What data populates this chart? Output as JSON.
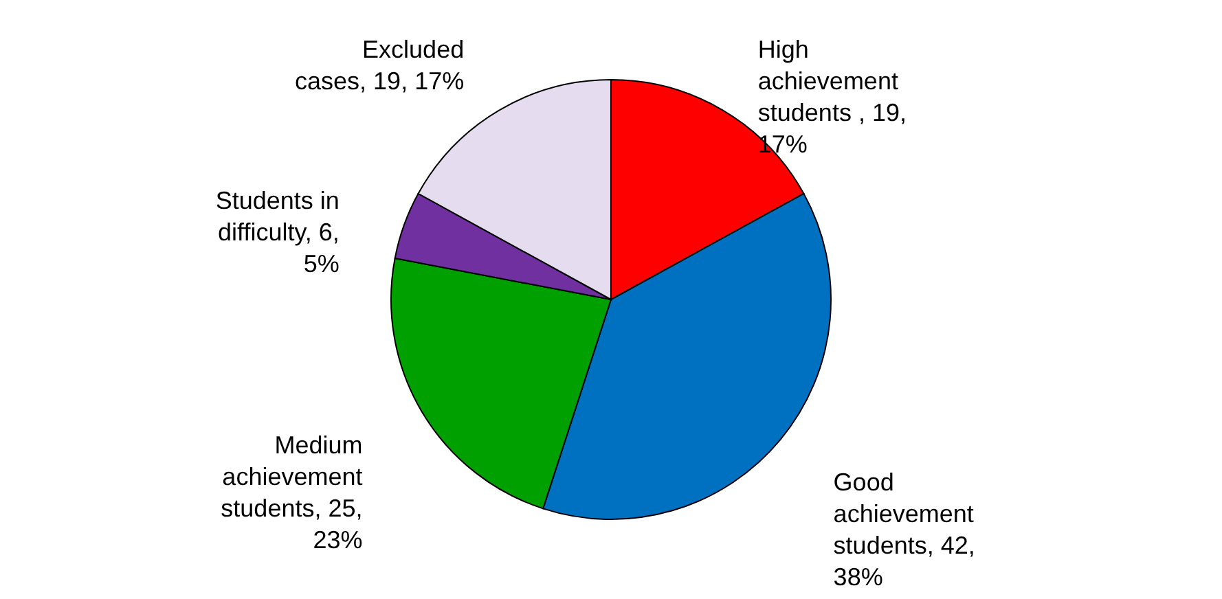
{
  "chart_data": {
    "type": "pie",
    "categories": [
      "High achievement students ",
      "Good achievement students",
      "Medium achievement students",
      "Students in difficulty",
      "Excluded cases"
    ],
    "values": [
      17,
      38,
      23,
      5,
      17
    ],
    "value_labels": [
      "19, 17%",
      "42, 38%",
      "25, 23%",
      "6, 5%",
      "19, 17%"
    ],
    "colors": [
      "#ff0000",
      "#0070c0",
      "#00a000",
      "#7030a0",
      "#e6dcf0"
    ]
  }
}
